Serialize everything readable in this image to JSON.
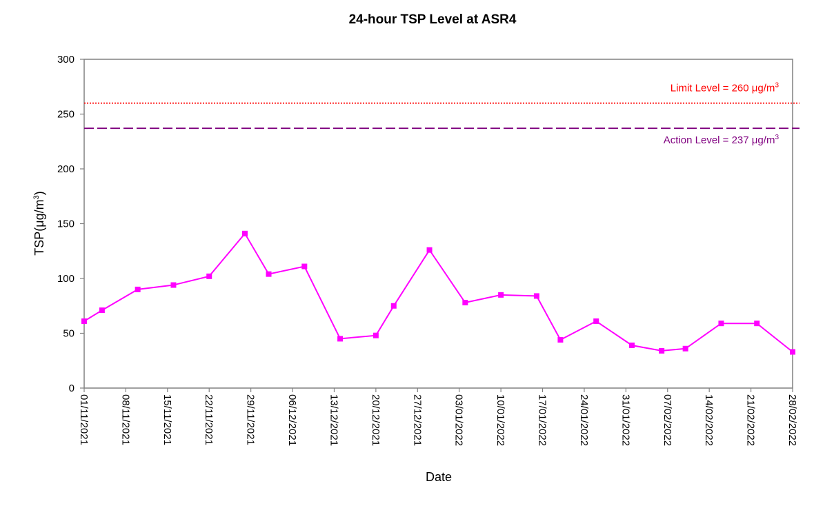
{
  "chart_data": {
    "type": "line",
    "title": "24-hour TSP Level at ASR4",
    "xlabel": "Date",
    "ylabel": "TSP(μg/m3)",
    "ylabel_parts": {
      "base": "TSP(",
      "unit": "μg/m",
      "sup": "3",
      "close": ")"
    },
    "ylim": [
      0,
      300
    ],
    "y_ticks": [
      0,
      50,
      100,
      150,
      200,
      250,
      300
    ],
    "x_range": [
      "2021-11-01",
      "2022-02-28"
    ],
    "x_tick_labels": [
      "01/11/2021",
      "08/11/2021",
      "15/11/2021",
      "22/11/2021",
      "29/11/2021",
      "06/12/2021",
      "13/12/2021",
      "20/12/2021",
      "27/12/2021",
      "03/01/2022",
      "10/01/2022",
      "17/01/2022",
      "24/01/2022",
      "31/01/2022",
      "07/02/2022",
      "14/02/2022",
      "21/02/2022",
      "28/02/2022"
    ],
    "grid": false,
    "series": [
      {
        "color": "#FF00FF",
        "marker": "square",
        "points": [
          {
            "x": "2021-11-01",
            "y": 61
          },
          {
            "x": "2021-11-04",
            "y": 71
          },
          {
            "x": "2021-11-10",
            "y": 90
          },
          {
            "x": "2021-11-16",
            "y": 94
          },
          {
            "x": "2021-11-22",
            "y": 102
          },
          {
            "x": "2021-11-28",
            "y": 141
          },
          {
            "x": "2021-12-02",
            "y": 104
          },
          {
            "x": "2021-12-08",
            "y": 111
          },
          {
            "x": "2021-12-14",
            "y": 45
          },
          {
            "x": "2021-12-20",
            "y": 48
          },
          {
            "x": "2021-12-23",
            "y": 75
          },
          {
            "x": "2021-12-29",
            "y": 126
          },
          {
            "x": "2022-01-04",
            "y": 78
          },
          {
            "x": "2022-01-10",
            "y": 85
          },
          {
            "x": "2022-01-16",
            "y": 84
          },
          {
            "x": "2022-01-20",
            "y": 44
          },
          {
            "x": "2022-01-26",
            "y": 61
          },
          {
            "x": "2022-02-01",
            "y": 39
          },
          {
            "x": "2022-02-06",
            "y": 34
          },
          {
            "x": "2022-02-10",
            "y": 36
          },
          {
            "x": "2022-02-16",
            "y": 59
          },
          {
            "x": "2022-02-22",
            "y": 59
          },
          {
            "x": "2022-02-28",
            "y": 33
          }
        ]
      }
    ],
    "reference_lines": [
      {
        "label": "Limit Level = 260 μg/m3",
        "label_parts": {
          "text": "Limit Level = 260 μg/m",
          "sup": "3"
        },
        "y": 260,
        "color": "#FF0000",
        "style": "dotted"
      },
      {
        "label": "Action Level = 237 μg/m3",
        "label_parts": {
          "text": "Action Level = 237 μg/m",
          "sup": "3"
        },
        "y": 237,
        "color": "#800080",
        "style": "dashed"
      }
    ]
  }
}
